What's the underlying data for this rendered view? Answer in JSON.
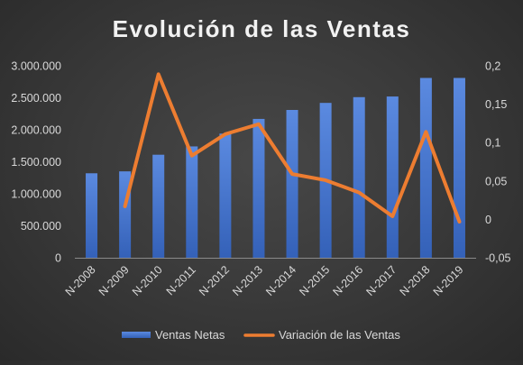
{
  "chart_data": {
    "type": "bar",
    "title": "Evolución de las Ventas",
    "categories": [
      "N-2008",
      "N-2009",
      "N-2010",
      "N-2011",
      "N-2012",
      "N-2013",
      "N-2014",
      "N-2015",
      "N-2016",
      "N-2017",
      "N-2018",
      "N-2019"
    ],
    "y_left": {
      "ylim": [
        0,
        3000000
      ],
      "ticks": [
        0,
        500000,
        1000000,
        1500000,
        2000000,
        2500000,
        3000000
      ],
      "tick_labels": [
        "0",
        "500.000",
        "1.000.000",
        "1.500.000",
        "2.000.000",
        "2.500.000",
        "3.000.000"
      ]
    },
    "y_right": {
      "ylim": [
        -0.05,
        0.2
      ],
      "ticks": [
        -0.05,
        0,
        0.05,
        0.1,
        0.15,
        0.2
      ],
      "tick_labels": [
        "-0,05",
        "0",
        "0,05",
        "0,1",
        "0,15",
        "0,2"
      ]
    },
    "series": [
      {
        "name": "Ventas Netas",
        "type": "bar",
        "axis": "left",
        "color": "#4472c4",
        "values": [
          1320000,
          1350000,
          1610000,
          1740000,
          1940000,
          2170000,
          2310000,
          2420000,
          2510000,
          2520000,
          2810000,
          2810000
        ]
      },
      {
        "name": "Variación de las Ventas",
        "type": "line",
        "axis": "right",
        "color": "#ed7d31",
        "values": [
          null,
          0.017,
          0.189,
          0.083,
          0.111,
          0.124,
          0.059,
          0.051,
          0.035,
          0.004,
          0.114,
          -0.003
        ]
      }
    ],
    "grid": false,
    "legend": "bottom"
  }
}
